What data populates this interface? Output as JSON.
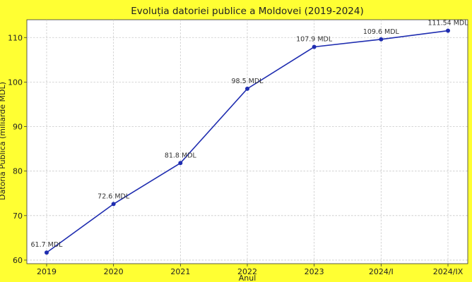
{
  "chart_data": {
    "type": "line",
    "title": "Evoluția datoriei publice a Moldovei (2019-2024)",
    "xlabel": "Anul",
    "ylabel": "Datoria Publică (miliarde MDL)",
    "categories": [
      "2019",
      "2020",
      "2021",
      "2022",
      "2023",
      "2024/I",
      "2024/IX"
    ],
    "series": [
      {
        "values": [
          61.7,
          72.6,
          81.8,
          98.5,
          107.9,
          109.6,
          111.54
        ],
        "labels": [
          "61.7 MDL",
          "72.6 MDL",
          "81.8 MDL",
          "98.5 MDL",
          "107.9 MDL",
          "109.6 MDL",
          "111.54 MDL"
        ],
        "color": "#1f2db0"
      }
    ],
    "yticks": [
      60,
      70,
      80,
      90,
      100,
      110
    ],
    "ylim": [
      59.2,
      114.0
    ],
    "grid": true,
    "legend": "none"
  },
  "colors": {
    "background": "#ffff33",
    "plot_area": "#ffffff",
    "line": "#1f2db0",
    "grid": "#c8c8c8"
  }
}
